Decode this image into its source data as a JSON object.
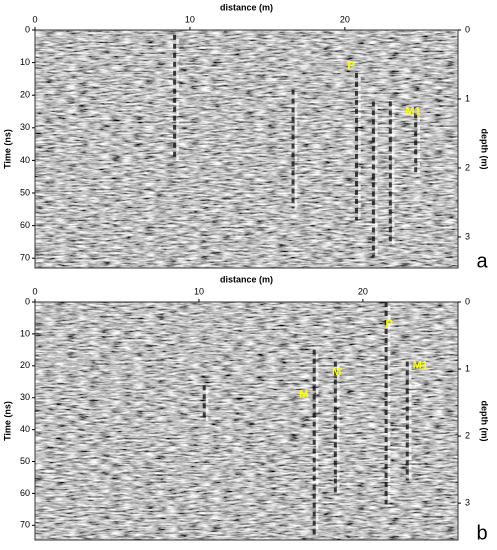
{
  "chart_data": [
    {
      "type": "radargram",
      "panel_label": "a",
      "xlabel": "distance (m)",
      "ylabel": "Time (ns)",
      "y2label": "depth (m)",
      "xlim": [
        0,
        27.3
      ],
      "xticks": [
        0,
        10,
        20
      ],
      "ylim": [
        0,
        73
      ],
      "yticks": [
        0,
        10,
        20,
        30,
        40,
        50,
        60,
        70
      ],
      "y2lim": [
        0,
        3.45
      ],
      "y2ticks": [
        0,
        1,
        2,
        3
      ],
      "annotations": [
        {
          "text": "P",
          "x": 20.4,
          "y": 11
        },
        {
          "text": "M1",
          "x": 24.4,
          "y": 25
        }
      ]
    },
    {
      "type": "radargram",
      "panel_label": "b",
      "xlabel": "distance (m)",
      "ylabel": "Time (ns)",
      "y2label": "depth (m)",
      "xlim": [
        0,
        25.8
      ],
      "xticks": [
        0,
        10,
        20
      ],
      "ylim": [
        0,
        74.6
      ],
      "yticks": [
        0,
        10,
        20,
        30,
        40,
        50,
        60,
        70
      ],
      "y2lim": [
        0,
        3.55
      ],
      "y2ticks": [
        0,
        1,
        2,
        3
      ],
      "annotations": [
        {
          "text": "P",
          "x": 21.6,
          "y": 7
        },
        {
          "text": "M1",
          "x": 23.5,
          "y": 20
        },
        {
          "text": "M",
          "x": 18.4,
          "y": 22
        },
        {
          "text": "M",
          "x": 16.4,
          "y": 29
        }
      ]
    }
  ]
}
